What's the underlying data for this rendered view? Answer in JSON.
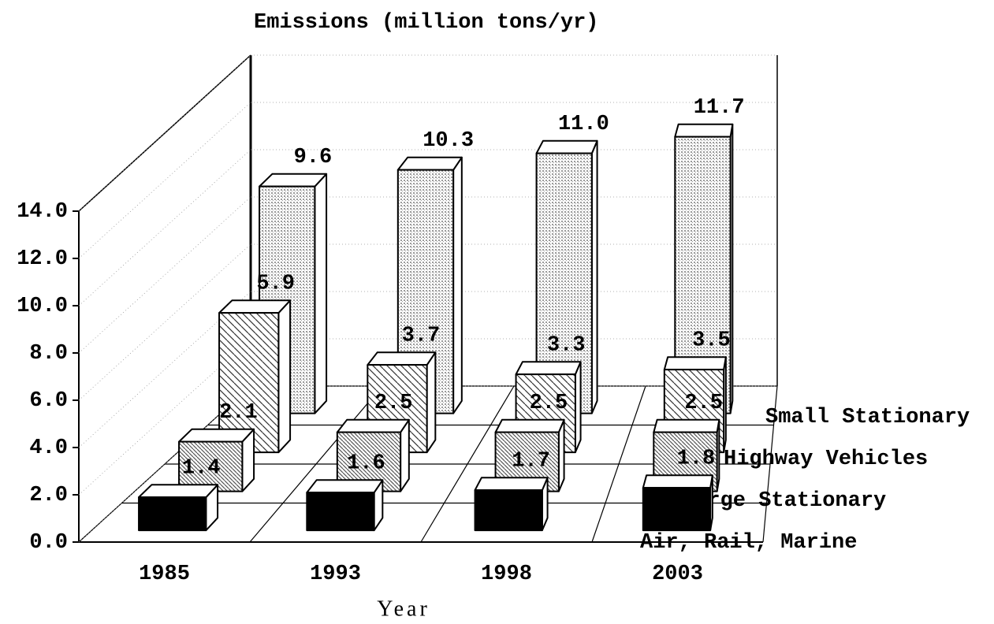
{
  "chart_data": {
    "type": "bar3d",
    "title": "Emissions (million tons/yr)",
    "xlabel": "Year",
    "categories": [
      "1985",
      "1993",
      "1998",
      "2003"
    ],
    "series": [
      {
        "name": "Air, Rail, Marine",
        "color": "#000000",
        "values": [
          1.4,
          1.6,
          1.7,
          1.8
        ],
        "value_labels": [
          "1.4",
          "1.6",
          "1.7",
          "1.8"
        ]
      },
      {
        "name": "Large Stationary",
        "color": "#555555",
        "values": [
          2.1,
          2.5,
          2.5,
          2.5
        ],
        "value_labels": [
          "2.1",
          "2.5",
          "2.5",
          "2.5"
        ]
      },
      {
        "name": "Highway Vehicles",
        "color": "#333333",
        "values": [
          5.9,
          3.7,
          3.3,
          3.5
        ],
        "value_labels": [
          "5.9",
          "3.7",
          "3.3",
          "3.5"
        ]
      },
      {
        "name": "Small Stationary",
        "color": "#9a9a9a",
        "values": [
          9.6,
          10.3,
          11.0,
          11.7
        ],
        "value_labels": [
          "9.6",
          "10.3",
          "11.0",
          "11.7"
        ]
      }
    ],
    "ylim": [
      0,
      14
    ],
    "yticks": [
      {
        "value": 0,
        "label": "0.0"
      },
      {
        "value": 2,
        "label": "2.0"
      },
      {
        "value": 4,
        "label": "4.0"
      },
      {
        "value": 6,
        "label": "6.0"
      },
      {
        "value": 8,
        "label": "8.0"
      },
      {
        "value": 10,
        "label": "10.0"
      },
      {
        "value": 12,
        "label": "12.0"
      },
      {
        "value": 14,
        "label": "14.0"
      }
    ],
    "grid": true
  }
}
